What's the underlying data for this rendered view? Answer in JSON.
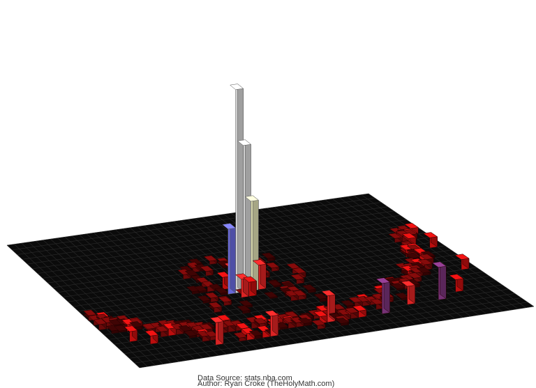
{
  "chart_data": {
    "type": "bar3d",
    "title": "",
    "xlabel": "",
    "ylabel": "",
    "zlabel": "",
    "description_of_encoding": "",
    "bars": [
      {
        "row": 14,
        "col": 20,
        "value": 100
      },
      {
        "row": 14,
        "col": 21,
        "value": 72
      },
      {
        "row": 14,
        "col": 22,
        "value": 44
      },
      {
        "row": 14,
        "col": 19,
        "value": 32
      },
      {
        "row": 14,
        "col": 23,
        "value": 12
      },
      {
        "row": 13,
        "col": 20,
        "value": 10
      },
      {
        "row": 15,
        "col": 20,
        "value": 9
      },
      {
        "row": 13,
        "col": 22,
        "value": 8
      },
      {
        "row": 15,
        "col": 21,
        "value": 7
      },
      {
        "row": 13,
        "col": 19,
        "value": 6
      },
      {
        "row": 22,
        "col": 33,
        "value": 15
      },
      {
        "row": 22,
        "col": 26,
        "value": 13
      },
      {
        "row": 21,
        "col": 41,
        "value": 16
      },
      {
        "row": 23,
        "col": 11,
        "value": 11
      },
      {
        "row": 23,
        "col": 18,
        "value": 10
      },
      {
        "row": 21,
        "col": 37,
        "value": 9
      },
      {
        "row": 20,
        "col": 44,
        "value": 6
      },
      {
        "row": 16,
        "col": 48,
        "value": 5
      },
      {
        "row": 11,
        "col": 48,
        "value": 5
      },
      {
        "row": 20,
        "col": 2,
        "value": 5
      },
      {
        "row": 21,
        "col": 4,
        "value": 4
      }
    ],
    "colorscale": {
      "low": "#3a0000",
      "mid": "#ff1a1a",
      "high": "#ffffff",
      "alt_mid": "#6666ff",
      "alt_high": "#ffff33"
    }
  },
  "credits": {
    "source": "Data Source: stats.nba.com",
    "author": "Author: Ryan Croke (TheHolyMath.com)"
  }
}
